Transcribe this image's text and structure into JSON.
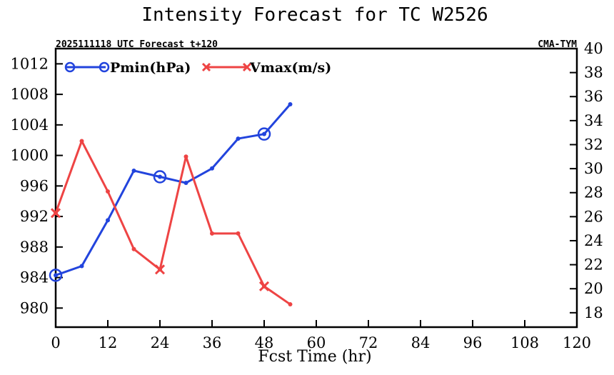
{
  "chart_data": {
    "type": "line",
    "title": "Intensity Forecast for TC W2526",
    "subtitle_left": "2025111118 UTC Forecast t+120",
    "subtitle_right": "CMA-TYM",
    "xlabel": "Fcst Time (hr)",
    "xlim": [
      0,
      120
    ],
    "xticks": [
      0,
      12,
      24,
      36,
      48,
      60,
      72,
      84,
      96,
      108,
      120
    ],
    "ylim_left": [
      977.5,
      1014
    ],
    "yticks_left": [
      980,
      984,
      988,
      992,
      996,
      1000,
      1004,
      1008,
      1012
    ],
    "ylim_right": [
      16.8,
      40
    ],
    "yticks_right": [
      18,
      20,
      22,
      24,
      26,
      28,
      30,
      32,
      34,
      36,
      38,
      40
    ],
    "x": [
      0,
      6,
      12,
      18,
      24,
      30,
      36,
      42,
      48,
      54
    ],
    "series": [
      {
        "name": "Pmin(hPa)",
        "axis": "left",
        "color": "#2244dd",
        "marker": "circle",
        "values": [
          984.3,
          985.5,
          991.5,
          998.0,
          997.2,
          996.4,
          998.3,
          1002.2,
          1002.8,
          1006.7
        ]
      },
      {
        "name": "Vmax(m/s)",
        "axis": "right",
        "color": "#ee4444",
        "marker": "x",
        "values": [
          26.3,
          32.3,
          28.1,
          23.3,
          21.6,
          31.0,
          24.6,
          24.6,
          20.2,
          18.7
        ]
      }
    ],
    "legend": "top-left"
  }
}
